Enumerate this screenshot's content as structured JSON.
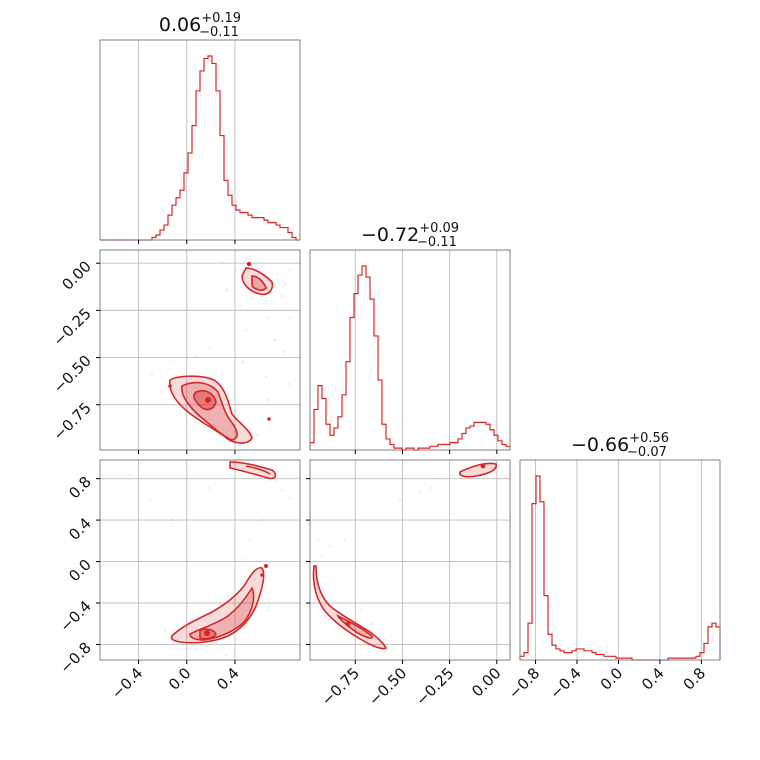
{
  "chart_data": {
    "type": "corner",
    "color": "#d62728",
    "grid": true,
    "parameters": [
      {
        "title_value": "0.06",
        "upper": "+0.19",
        "lower": "−0.11",
        "range": [
          -0.72,
          0.94
        ]
      },
      {
        "title_value": "−0.72",
        "upper": "+0.09",
        "lower": "−0.11",
        "range": [
          -0.99,
          0.07
        ]
      },
      {
        "title_value": "−0.66",
        "upper": "+0.56",
        "lower": "−0.07",
        "range": [
          -0.95,
          0.98
        ]
      }
    ],
    "ticks": {
      "p0": [
        {
          "v": -0.4,
          "label": "−0.4"
        },
        {
          "v": 0.0,
          "label": "0.0"
        },
        {
          "v": 0.4,
          "label": "0.4"
        }
      ],
      "p1": [
        {
          "v": -0.75,
          "label": "−0.75"
        },
        {
          "v": -0.5,
          "label": "−0.50"
        },
        {
          "v": -0.25,
          "label": "−0.25"
        },
        {
          "v": 0.0,
          "label": "0.00"
        }
      ],
      "p2": [
        {
          "v": -0.8,
          "label": "−0.8"
        },
        {
          "v": -0.4,
          "label": "−0.4"
        },
        {
          "v": 0.0,
          "label": "0.0"
        },
        {
          "v": 0.4,
          "label": "0.4"
        },
        {
          "v": 0.8,
          "label": "0.8"
        }
      ]
    },
    "histograms": [
      {
        "param": 0,
        "bins": [
          -0.72,
          0.94
        ],
        "counts": [
          0,
          0,
          0,
          0,
          0,
          0,
          0,
          0,
          0,
          0,
          0,
          0,
          0,
          1,
          2,
          4,
          6,
          10,
          14,
          17,
          20,
          27,
          35,
          46,
          60,
          68,
          73,
          74,
          71,
          60,
          42,
          24,
          18,
          14,
          12,
          11,
          11,
          10,
          9,
          9,
          9,
          8,
          7,
          7,
          6,
          5,
          5,
          3,
          1,
          0
        ]
      },
      {
        "param": 1,
        "bins": [
          -0.99,
          0.07
        ],
        "counts": [
          4,
          22,
          35,
          28,
          14,
          8,
          12,
          18,
          30,
          48,
          72,
          85,
          95,
          100,
          94,
          82,
          62,
          38,
          14,
          6,
          3,
          1,
          1,
          0,
          1,
          1,
          0,
          1,
          1,
          1,
          2,
          2,
          3,
          3,
          3,
          4,
          4,
          6,
          9,
          12,
          13,
          15,
          15,
          15,
          14,
          11,
          8,
          5,
          3,
          2
        ]
      },
      {
        "param": 2,
        "bins": [
          -0.95,
          0.98
        ],
        "counts": [
          2,
          4,
          20,
          85,
          100,
          86,
          35,
          14,
          8,
          6,
          5,
          4,
          4,
          5,
          6,
          6,
          5,
          5,
          4,
          3,
          3,
          2,
          2,
          2,
          1,
          1,
          1,
          1,
          0,
          0,
          0,
          0,
          0,
          0,
          0,
          0,
          0,
          1,
          1,
          1,
          1,
          1,
          1,
          1,
          2,
          4,
          9,
          18,
          20,
          18
        ]
      }
    ],
    "contours_2d": [
      {
        "x_param": 0,
        "y_param": 1,
        "modes": [
          {
            "center": [
              0.05,
              -0.72
            ],
            "peak": [
              0.07,
              -0.73
            ]
          },
          {
            "center": [
              0.45,
              0.03
            ],
            "peak": [
              0.38,
              0.02
            ]
          }
        ]
      },
      {
        "x_param": 0,
        "y_param": 2,
        "modes": [
          {
            "center": [
              0.02,
              -0.72
            ],
            "peak": [
              0.05,
              -0.69
            ]
          },
          {
            "center": [
              0.35,
              0.92
            ],
            "peak": [
              0.38,
              0.95
            ]
          }
        ]
      },
      {
        "x_param": 1,
        "y_param": 2,
        "modes": [
          {
            "center": [
              -0.72,
              -0.57
            ],
            "peak": [
              -0.75,
              -0.62
            ]
          },
          {
            "center": [
              -0.1,
              0.95
            ],
            "peak": [
              -0.13,
              0.95
            ]
          }
        ]
      }
    ]
  }
}
